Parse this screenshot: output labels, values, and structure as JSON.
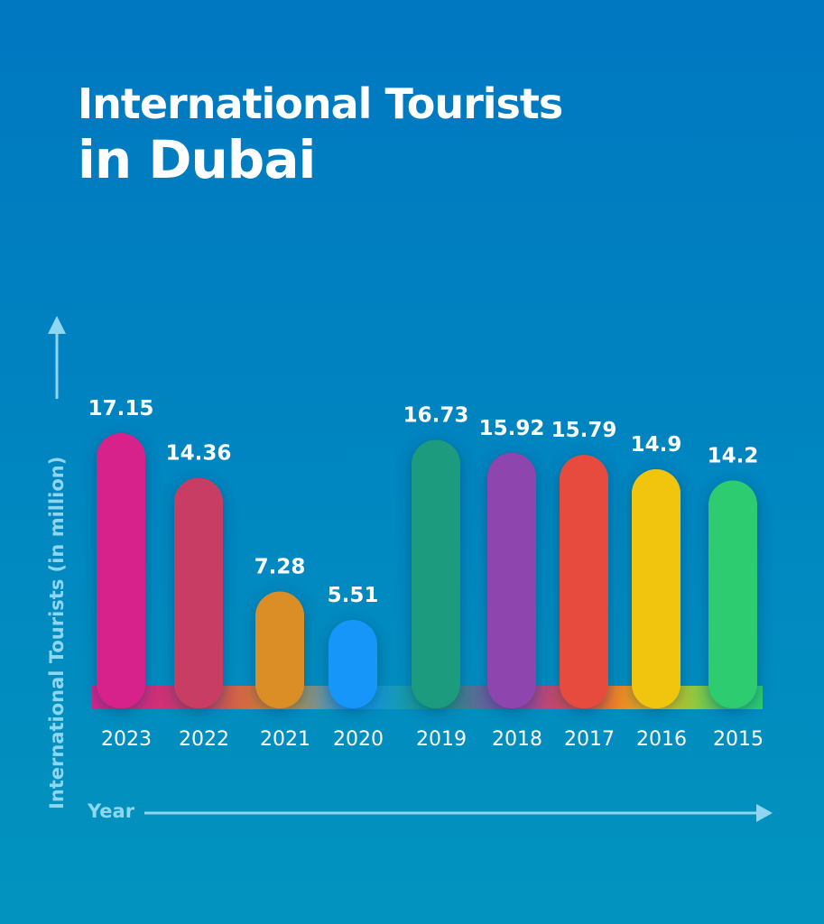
{
  "chart_data": {
    "type": "bar",
    "title": "International Tourists in Dubai",
    "title_lines": [
      "International Tourists",
      "in Dubai"
    ],
    "xlabel": "Year",
    "ylabel": "International Tourists (in million)",
    "categories": [
      "2023",
      "2022",
      "2021",
      "2020",
      "2019",
      "2018",
      "2017",
      "2016",
      "2015"
    ],
    "values": [
      17.15,
      14.36,
      7.28,
      5.51,
      16.73,
      15.92,
      15.79,
      14.9,
      14.2
    ],
    "value_labels": [
      "17.15",
      "14.36",
      "7.28",
      "5.51",
      "16.73",
      "15.92",
      "15.79",
      "14.9",
      "14.2"
    ],
    "colors": [
      "#d6248a",
      "#c83d63",
      "#dc8e26",
      "#1296f8",
      "#1a9b7e",
      "#8e44ad",
      "#e74c3c",
      "#f1c40f",
      "#2ecc71"
    ],
    "ylim": [
      0,
      17.15
    ],
    "grid": false,
    "legend": "none"
  },
  "theme": {
    "background_top": "#0077c1",
    "background_bottom": "#0294bf",
    "axis_color": "#8fd6f0",
    "text_color": "#ffffff"
  }
}
